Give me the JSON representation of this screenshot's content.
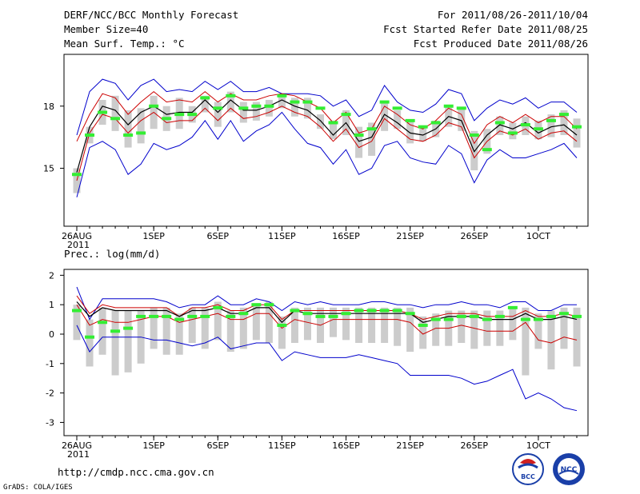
{
  "header": {
    "left1": "DERF/NCC/BCC Monthly Forecast",
    "left2": "Member Size=40",
    "left3": "Mean Surf. Temp.: °C",
    "right1": "For 2011/08/26-2011/10/04",
    "right2": "Fcst Started Refer Date 2011/08/25",
    "right3": "Fcst Produced Date 2011/08/26"
  },
  "precip_title": "Prec.: log(mm/d)",
  "footer": {
    "url": "http://cmdp.ncc.cma.gov.cn",
    "credit": "GrADS: COLA/IGES",
    "logo1_text": "BCC",
    "logo2_text": "NCC"
  },
  "colors": {
    "envelope": "#0000cc",
    "spread": "#cc0000",
    "mean": "#000000",
    "median": "#33ee33",
    "box": "#cccccc"
  },
  "chart_data": [
    {
      "type": "box-envelope",
      "title": "Mean Surf. Temp.: °C",
      "x": [
        "26AUG",
        "27AUG",
        "28AUG",
        "29AUG",
        "30AUG",
        "31AUG",
        "1SEP",
        "2SEP",
        "3SEP",
        "4SEP",
        "5SEP",
        "6SEP",
        "7SEP",
        "8SEP",
        "9SEP",
        "10SEP",
        "11SEP",
        "12SEP",
        "13SEP",
        "14SEP",
        "15SEP",
        "16SEP",
        "17SEP",
        "18SEP",
        "19SEP",
        "20SEP",
        "21SEP",
        "22SEP",
        "23SEP",
        "24SEP",
        "25SEP",
        "26SEP",
        "27SEP",
        "28SEP",
        "29SEP",
        "30SEP",
        "1OCT",
        "2OCT",
        "3OCT",
        "4OCT"
      ],
      "tick_labels": [
        "26AUG\n2011",
        "1SEP",
        "6SEP",
        "11SEP",
        "16SEP",
        "21SEP",
        "26SEP",
        "1OCT"
      ],
      "tick_indices": [
        0,
        6,
        11,
        16,
        21,
        26,
        31,
        36
      ],
      "y_ticks": [
        15,
        18
      ],
      "ylim": [
        12.2,
        20.5
      ],
      "series": [
        {
          "name": "max",
          "values": [
            16.6,
            18.7,
            19.3,
            19.1,
            18.3,
            19.0,
            19.3,
            18.7,
            18.8,
            18.7,
            19.2,
            18.8,
            19.2,
            18.7,
            18.7,
            18.9,
            18.6,
            18.6,
            18.6,
            18.5,
            18.0,
            18.3,
            17.5,
            17.8,
            19.0,
            18.2,
            17.8,
            17.7,
            18.1,
            18.8,
            18.6,
            17.3,
            17.9,
            18.3,
            18.1,
            18.4,
            17.9,
            18.2,
            18.2,
            17.7
          ]
        },
        {
          "name": "p90",
          "values": [
            16.3,
            17.6,
            18.6,
            18.4,
            17.6,
            18.2,
            18.7,
            18.2,
            18.3,
            18.2,
            18.7,
            18.2,
            18.6,
            18.3,
            18.3,
            18.5,
            18.6,
            18.5,
            18.2,
            17.9,
            17.2,
            17.7,
            16.7,
            16.9,
            18.0,
            17.6,
            17.1,
            16.9,
            17.3,
            17.9,
            17.6,
            16.2,
            17.1,
            17.5,
            17.2,
            17.6,
            17.2,
            17.5,
            17.5,
            16.9
          ]
        },
        {
          "name": "mean",
          "values": [
            14.8,
            17.0,
            18.0,
            17.8,
            17.1,
            17.7,
            18.0,
            17.6,
            17.7,
            17.7,
            18.3,
            17.7,
            18.3,
            17.8,
            17.8,
            18.0,
            18.3,
            18.0,
            17.8,
            17.3,
            16.6,
            17.2,
            16.3,
            16.5,
            17.6,
            17.2,
            16.7,
            16.6,
            16.9,
            17.5,
            17.3,
            15.8,
            16.6,
            17.1,
            16.9,
            17.2,
            16.7,
            17.0,
            17.1,
            16.6
          ]
        },
        {
          "name": "p10",
          "values": [
            14.4,
            16.7,
            17.6,
            17.4,
            16.7,
            17.3,
            17.7,
            17.2,
            17.3,
            17.3,
            17.9,
            17.3,
            17.9,
            17.4,
            17.5,
            17.7,
            18.0,
            17.7,
            17.5,
            17.0,
            16.3,
            16.9,
            16.0,
            16.3,
            17.4,
            16.9,
            16.4,
            16.3,
            16.6,
            17.2,
            17.0,
            15.5,
            16.3,
            16.8,
            16.6,
            16.9,
            16.4,
            16.7,
            16.8,
            16.3
          ]
        },
        {
          "name": "min",
          "values": [
            13.6,
            16.0,
            16.3,
            15.9,
            14.7,
            15.2,
            16.2,
            15.9,
            16.1,
            16.5,
            17.3,
            16.4,
            17.3,
            16.3,
            16.8,
            17.1,
            17.7,
            16.9,
            16.2,
            16.0,
            15.2,
            15.9,
            14.7,
            15.0,
            16.1,
            16.3,
            15.5,
            15.3,
            15.2,
            16.1,
            15.7,
            14.3,
            15.4,
            15.9,
            15.5,
            15.5,
            15.7,
            15.9,
            16.2,
            15.5
          ]
        },
        {
          "name": "median",
          "values": [
            14.7,
            16.6,
            17.7,
            17.4,
            16.6,
            16.7,
            18.0,
            17.4,
            17.6,
            17.6,
            18.4,
            17.9,
            18.5,
            17.9,
            18.0,
            18.0,
            18.5,
            18.2,
            18.2,
            17.9,
            17.2,
            17.6,
            16.6,
            16.9,
            18.2,
            17.9,
            17.3,
            17.0,
            17.2,
            18.0,
            17.9,
            16.6,
            15.9,
            17.2,
            16.7,
            17.1,
            16.9,
            17.3,
            17.6,
            17.0
          ]
        },
        {
          "name": "box_top",
          "values": [
            15.0,
            17.0,
            18.3,
            18.5,
            17.8,
            17.9,
            18.5,
            18.0,
            18.4,
            18.0,
            18.5,
            18.2,
            18.7,
            18.2,
            18.2,
            18.3,
            18.6,
            18.4,
            18.4,
            17.6,
            17.3,
            17.8,
            17.0,
            17.2,
            18.2,
            17.8,
            17.3,
            17.0,
            17.3,
            18.0,
            17.9,
            16.8,
            16.9,
            17.5,
            17.2,
            17.5,
            17.3,
            17.6,
            17.8,
            17.4
          ]
        },
        {
          "name": "box_bottom",
          "values": [
            13.8,
            16.2,
            17.1,
            16.8,
            16.0,
            16.2,
            16.9,
            16.8,
            16.9,
            17.2,
            17.7,
            17.0,
            17.7,
            17.2,
            17.3,
            17.5,
            17.9,
            17.5,
            17.4,
            16.9,
            16.4,
            16.6,
            15.5,
            15.6,
            16.8,
            16.9,
            16.2,
            16.3,
            16.5,
            17.0,
            16.8,
            14.9,
            15.7,
            16.6,
            16.4,
            16.6,
            16.4,
            16.5,
            16.6,
            16.0
          ]
        }
      ]
    },
    {
      "type": "box-envelope",
      "title": "Prec.: log(mm/d)",
      "x": [
        "26AUG",
        "27AUG",
        "28AUG",
        "29AUG",
        "30AUG",
        "31AUG",
        "1SEP",
        "2SEP",
        "3SEP",
        "4SEP",
        "5SEP",
        "6SEP",
        "7SEP",
        "8SEP",
        "9SEP",
        "10SEP",
        "11SEP",
        "12SEP",
        "13SEP",
        "14SEP",
        "15SEP",
        "16SEP",
        "17SEP",
        "18SEP",
        "19SEP",
        "20SEP",
        "21SEP",
        "22SEP",
        "23SEP",
        "24SEP",
        "25SEP",
        "26SEP",
        "27SEP",
        "28SEP",
        "29SEP",
        "30SEP",
        "1OCT",
        "2OCT",
        "3OCT",
        "4OCT"
      ],
      "tick_labels": [
        "26AUG\n2011",
        "1SEP",
        "6SEP",
        "11SEP",
        "16SEP",
        "21SEP",
        "26SEP",
        "1OCT"
      ],
      "tick_indices": [
        0,
        6,
        11,
        16,
        21,
        26,
        31,
        36
      ],
      "y_ticks": [
        -3,
        -2,
        -1,
        0,
        1,
        2
      ],
      "ylim": [
        -3.45,
        2.2
      ],
      "series": [
        {
          "name": "max",
          "values": [
            1.6,
            0.5,
            1.2,
            1.2,
            1.2,
            1.2,
            1.2,
            1.1,
            0.9,
            1.0,
            1.0,
            1.3,
            1.0,
            1.0,
            1.2,
            1.1,
            0.8,
            1.1,
            1.0,
            1.1,
            1.0,
            1.0,
            1.0,
            1.1,
            1.1,
            1.0,
            1.0,
            0.9,
            1.0,
            1.0,
            1.1,
            1.0,
            1.0,
            0.9,
            1.1,
            1.1,
            0.8,
            0.8,
            1.0,
            1.0
          ]
        },
        {
          "name": "p90",
          "values": [
            1.3,
            0.7,
            1.0,
            0.9,
            0.9,
            0.9,
            0.9,
            0.9,
            0.6,
            0.9,
            0.9,
            1.0,
            0.8,
            0.8,
            1.0,
            1.0,
            0.5,
            0.8,
            0.8,
            0.8,
            0.8,
            0.8,
            0.8,
            0.8,
            0.8,
            0.8,
            0.7,
            0.5,
            0.6,
            0.7,
            0.7,
            0.7,
            0.6,
            0.6,
            0.6,
            0.8,
            0.6,
            0.6,
            0.7,
            0.6
          ]
        },
        {
          "name": "mean",
          "values": [
            1.1,
            0.6,
            0.9,
            0.8,
            0.8,
            0.8,
            0.8,
            0.8,
            0.6,
            0.8,
            0.8,
            0.9,
            0.7,
            0.7,
            0.9,
            0.9,
            0.4,
            0.8,
            0.7,
            0.7,
            0.7,
            0.7,
            0.7,
            0.7,
            0.7,
            0.7,
            0.7,
            0.4,
            0.5,
            0.6,
            0.6,
            0.6,
            0.5,
            0.5,
            0.5,
            0.7,
            0.5,
            0.5,
            0.6,
            0.5
          ]
        },
        {
          "name": "p10",
          "values": [
            1.0,
            0.3,
            0.5,
            0.4,
            0.4,
            0.5,
            0.6,
            0.6,
            0.4,
            0.5,
            0.6,
            0.7,
            0.5,
            0.5,
            0.7,
            0.7,
            0.2,
            0.5,
            0.4,
            0.3,
            0.5,
            0.5,
            0.5,
            0.5,
            0.5,
            0.5,
            0.4,
            0.0,
            0.2,
            0.2,
            0.3,
            0.2,
            0.1,
            0.1,
            0.1,
            0.4,
            -0.2,
            -0.3,
            -0.1,
            -0.2
          ]
        },
        {
          "name": "min",
          "values": [
            0.3,
            -0.6,
            -0.1,
            -0.1,
            -0.1,
            -0.1,
            -0.2,
            -0.2,
            -0.3,
            -0.4,
            -0.3,
            -0.1,
            -0.5,
            -0.4,
            -0.3,
            -0.3,
            -0.9,
            -0.6,
            -0.7,
            -0.8,
            -0.8,
            -0.8,
            -0.7,
            -0.8,
            -0.9,
            -1.0,
            -1.4,
            -1.4,
            -1.4,
            -1.4,
            -1.5,
            -1.7,
            -1.6,
            -1.4,
            -1.2,
            -2.2,
            -2.0,
            -2.2,
            -2.5,
            -2.6
          ]
        },
        {
          "name": "median",
          "values": [
            0.8,
            -0.1,
            0.4,
            0.1,
            0.2,
            0.6,
            0.6,
            0.6,
            0.5,
            0.6,
            0.6,
            0.9,
            0.6,
            0.7,
            1.0,
            1.0,
            0.3,
            0.8,
            0.7,
            0.6,
            0.6,
            0.7,
            0.8,
            0.8,
            0.8,
            0.8,
            0.7,
            0.3,
            0.5,
            0.5,
            0.6,
            0.6,
            0.5,
            0.6,
            0.9,
            0.5,
            0.5,
            0.6,
            0.7,
            0.6
          ]
        },
        {
          "name": "box_top",
          "values": [
            1.0,
            0.5,
            0.9,
            0.8,
            0.8,
            0.8,
            0.9,
            0.9,
            0.7,
            0.9,
            0.9,
            1.1,
            0.8,
            0.9,
            1.0,
            1.1,
            0.6,
            0.9,
            0.9,
            0.9,
            0.9,
            0.9,
            0.9,
            0.9,
            0.9,
            0.9,
            0.9,
            0.6,
            0.7,
            0.8,
            0.8,
            0.8,
            0.8,
            0.8,
            0.9,
            0.9,
            0.7,
            0.8,
            0.9,
            0.9
          ]
        },
        {
          "name": "box_bottom",
          "values": [
            -0.2,
            -1.1,
            -0.7,
            -1.4,
            -1.3,
            -1.0,
            -0.5,
            -0.7,
            -0.7,
            -0.3,
            -0.5,
            -0.2,
            -0.6,
            -0.5,
            -0.2,
            -0.3,
            -0.5,
            -0.3,
            -0.2,
            -0.3,
            -0.1,
            -0.2,
            -0.3,
            -0.3,
            -0.3,
            -0.4,
            -0.6,
            -0.5,
            -0.4,
            -0.4,
            -0.3,
            -0.5,
            -0.4,
            -0.4,
            -0.2,
            -1.4,
            -0.5,
            -1.2,
            -0.5,
            -1.1
          ]
        }
      ]
    }
  ]
}
